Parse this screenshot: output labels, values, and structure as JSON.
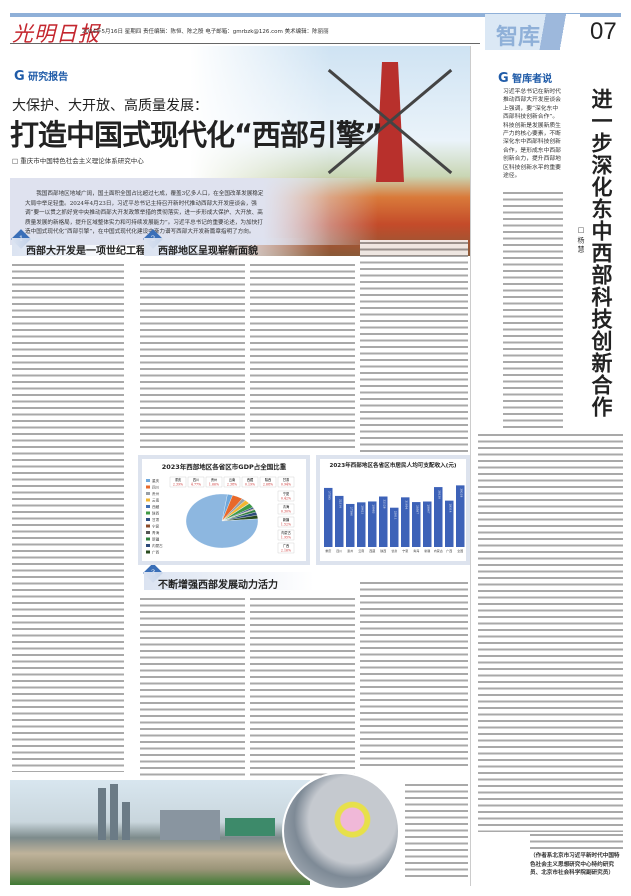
{
  "masthead": {
    "logo": "光明日报",
    "meta": "2024年5月16日  星期四  责任编辑：陈恒、陈之殷  电子邮箱：gmrbzk@126.com  美术编辑：陈丽丽",
    "section": "智库",
    "page_number": "07"
  },
  "article": {
    "kicker": "研究报告",
    "subtitle": "大保护、大开放、高质量发展：",
    "title": "打造中国式现代化“西部引擎”",
    "byline": "重庆市中国特色社会主义理论体系研究中心",
    "abstract": "我国西部地区地域广阔，国土面积全国占比超过七成，覆盖3亿多人口，在全国改革发展稳定大局中举足轻重。2024年4月23日，习近平总书记主持召开新时代推动西部大开发座谈会，强调“要一以贯之抓好党中央推动西部大开发政策举措的贯彻落实，进一步形成大保护、大开放、高质量发展的新格局，提升区域整体实力和可持续发展能力”。习近平总书记的重要论述，为加快打造中国式现代化“西部引擎”，在中国式现代化建设中奋力谱写西部大开发新篇章指明了方向。",
    "sections": [
      {
        "number": "1",
        "heading": "西部大开发是一项世纪工程"
      },
      {
        "number": "2",
        "heading": "西部地区呈现崭新面貌"
      },
      {
        "number": "3",
        "heading": "不断增强西部发展动力活力"
      }
    ]
  },
  "sidebar": {
    "kicker": "智库者说",
    "title": "进一步深化东中西部科技创新合作",
    "author": "杨 慧",
    "lead": "习近平总书记在新时代推动西部大开发座谈会上强调，要“深化东中西部科技创新合作”。科技创新是发展新质生产力的核心要素，不断深化东中西部科技创新合作，是形成东中西部创新合力，提升西部地区科技创新水平的重要途径。",
    "author_note": "（作者系北京市习近平新时代中国特色社会主义思想研究中心特约研究员、北京市社会科学院副研究员）"
  },
  "chart_data": [
    {
      "type": "pie",
      "title": "2023年西部地区各省区市GDP占全国比重",
      "unit": "%",
      "categories": [
        "重庆",
        "四川",
        "贵州",
        "云南",
        "西藏",
        "陕西",
        "甘肃",
        "宁夏",
        "青海",
        "新疆",
        "内蒙古",
        "广西"
      ],
      "values": [
        2.39,
        4.77,
        1.66,
        2.38,
        0.19,
        2.68,
        0.94,
        0.42,
        0.3,
        1.52,
        1.95,
        2.16
      ],
      "colors": [
        "#6fa8dc",
        "#e8692a",
        "#9aa0a6",
        "#f2b632",
        "#3f6fb5",
        "#3f9a46",
        "#2e4f86",
        "#8a4b2a",
        "#555555",
        "#2f7f3e",
        "#2d4a7a",
        "#284b1f"
      ],
      "legend": "left"
    },
    {
      "type": "bar",
      "title": "2023年西部地区各省区市居民人均可支配收入(元)",
      "categories": [
        "重庆",
        "四川",
        "贵州",
        "云南",
        "西藏",
        "陕西",
        "甘肃",
        "宁夏",
        "青海",
        "新疆",
        "内蒙古",
        "广西",
        "全国"
      ],
      "values": [
        37595,
        32514,
        27396,
        28421,
        28983,
        32128,
        25011,
        31604,
        28587,
        28947,
        38130,
        29514,
        39218
      ],
      "color": "#3d62b8"
    }
  ]
}
